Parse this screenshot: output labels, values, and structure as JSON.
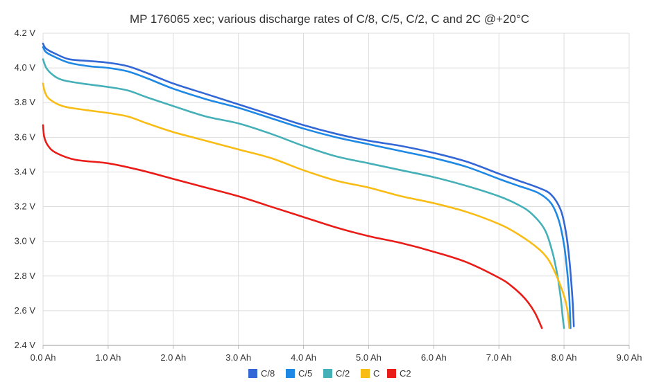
{
  "chart_data": {
    "type": "line",
    "title": "MP 176065 xec; various discharge rates of C/8, C/5, C/2, C and 2C @+20°C",
    "xlabel": "",
    "ylabel": "",
    "xlim": [
      0,
      9
    ],
    "ylim": [
      2.4,
      4.2
    ],
    "x_ticks": [
      0,
      1,
      2,
      3,
      4,
      5,
      6,
      7,
      8,
      9
    ],
    "x_tick_labels": [
      "0.0 Ah",
      "1.0 Ah",
      "2.0 Ah",
      "3.0 Ah",
      "4.0 Ah",
      "5.0 Ah",
      "6.0 Ah",
      "7.0 Ah",
      "8.0 Ah",
      "9.0 Ah"
    ],
    "y_ticks": [
      2.4,
      2.6,
      2.8,
      3.0,
      3.2,
      3.4,
      3.6,
      3.8,
      4.0,
      4.2
    ],
    "y_tick_labels": [
      "2.4 V",
      "2.6 V",
      "2.8 V",
      "3.0 V",
      "3.2 V",
      "3.4 V",
      "3.6 V",
      "3.8 V",
      "4.0 V",
      "4.2 V"
    ],
    "grid": true,
    "legend_position": "bottom",
    "series": [
      {
        "name": "C/8",
        "color": "#3367d6",
        "points": [
          [
            0,
            4.14
          ],
          [
            0.05,
            4.11
          ],
          [
            0.2,
            4.08
          ],
          [
            0.4,
            4.05
          ],
          [
            0.7,
            4.04
          ],
          [
            1.0,
            4.03
          ],
          [
            1.3,
            4.01
          ],
          [
            1.6,
            3.97
          ],
          [
            2.0,
            3.91
          ],
          [
            2.5,
            3.85
          ],
          [
            3.0,
            3.79
          ],
          [
            3.5,
            3.73
          ],
          [
            4.0,
            3.67
          ],
          [
            4.5,
            3.62
          ],
          [
            5.0,
            3.58
          ],
          [
            5.5,
            3.55
          ],
          [
            6.0,
            3.51
          ],
          [
            6.5,
            3.46
          ],
          [
            7.0,
            3.39
          ],
          [
            7.3,
            3.35
          ],
          [
            7.6,
            3.31
          ],
          [
            7.8,
            3.27
          ],
          [
            7.95,
            3.18
          ],
          [
            8.03,
            3.05
          ],
          [
            8.08,
            2.9
          ],
          [
            8.12,
            2.72
          ],
          [
            8.14,
            2.6
          ],
          [
            8.15,
            2.51
          ]
        ]
      },
      {
        "name": "C/5",
        "color": "#1e88e5",
        "points": [
          [
            0,
            4.12
          ],
          [
            0.05,
            4.09
          ],
          [
            0.2,
            4.06
          ],
          [
            0.4,
            4.03
          ],
          [
            0.7,
            4.01
          ],
          [
            1.0,
            4.0
          ],
          [
            1.3,
            3.98
          ],
          [
            1.6,
            3.94
          ],
          [
            2.0,
            3.88
          ],
          [
            2.5,
            3.82
          ],
          [
            3.0,
            3.77
          ],
          [
            3.5,
            3.71
          ],
          [
            4.0,
            3.65
          ],
          [
            4.5,
            3.6
          ],
          [
            5.0,
            3.56
          ],
          [
            5.5,
            3.52
          ],
          [
            6.0,
            3.48
          ],
          [
            6.5,
            3.43
          ],
          [
            7.0,
            3.36
          ],
          [
            7.3,
            3.32
          ],
          [
            7.6,
            3.28
          ],
          [
            7.8,
            3.22
          ],
          [
            7.92,
            3.12
          ],
          [
            8.0,
            2.98
          ],
          [
            8.05,
            2.82
          ],
          [
            8.08,
            2.68
          ],
          [
            8.1,
            2.5
          ]
        ]
      },
      {
        "name": "C/2",
        "color": "#45b0b8",
        "points": [
          [
            0,
            4.05
          ],
          [
            0.05,
            4.0
          ],
          [
            0.15,
            3.96
          ],
          [
            0.3,
            3.93
          ],
          [
            0.6,
            3.91
          ],
          [
            1.0,
            3.89
          ],
          [
            1.3,
            3.87
          ],
          [
            1.6,
            3.83
          ],
          [
            2.0,
            3.78
          ],
          [
            2.5,
            3.72
          ],
          [
            3.0,
            3.68
          ],
          [
            3.5,
            3.62
          ],
          [
            4.0,
            3.55
          ],
          [
            4.5,
            3.49
          ],
          [
            5.0,
            3.45
          ],
          [
            5.5,
            3.41
          ],
          [
            6.0,
            3.37
          ],
          [
            6.5,
            3.32
          ],
          [
            7.0,
            3.26
          ],
          [
            7.3,
            3.21
          ],
          [
            7.5,
            3.16
          ],
          [
            7.7,
            3.07
          ],
          [
            7.82,
            2.94
          ],
          [
            7.9,
            2.8
          ],
          [
            7.95,
            2.67
          ],
          [
            7.98,
            2.56
          ],
          [
            8.0,
            2.5
          ]
        ]
      },
      {
        "name": "C",
        "color": "#f9bc15",
        "points": [
          [
            0,
            3.91
          ],
          [
            0.03,
            3.86
          ],
          [
            0.1,
            3.82
          ],
          [
            0.3,
            3.78
          ],
          [
            0.6,
            3.76
          ],
          [
            1.0,
            3.74
          ],
          [
            1.3,
            3.72
          ],
          [
            1.6,
            3.68
          ],
          [
            2.0,
            3.63
          ],
          [
            2.5,
            3.58
          ],
          [
            3.0,
            3.53
          ],
          [
            3.5,
            3.48
          ],
          [
            4.0,
            3.41
          ],
          [
            4.5,
            3.35
          ],
          [
            5.0,
            3.31
          ],
          [
            5.5,
            3.26
          ],
          [
            6.0,
            3.22
          ],
          [
            6.5,
            3.17
          ],
          [
            7.0,
            3.1
          ],
          [
            7.3,
            3.04
          ],
          [
            7.6,
            2.96
          ],
          [
            7.75,
            2.9
          ],
          [
            7.85,
            2.83
          ],
          [
            7.95,
            2.74
          ],
          [
            8.02,
            2.66
          ],
          [
            8.06,
            2.58
          ],
          [
            8.08,
            2.5
          ]
        ]
      },
      {
        "name": "C2",
        "color": "#ea1c17",
        "points": [
          [
            0,
            3.67
          ],
          [
            0.02,
            3.6
          ],
          [
            0.08,
            3.55
          ],
          [
            0.2,
            3.51
          ],
          [
            0.5,
            3.47
          ],
          [
            1.0,
            3.45
          ],
          [
            1.5,
            3.41
          ],
          [
            2.0,
            3.36
          ],
          [
            2.5,
            3.31
          ],
          [
            3.0,
            3.26
          ],
          [
            3.5,
            3.2
          ],
          [
            4.0,
            3.14
          ],
          [
            4.5,
            3.08
          ],
          [
            5.0,
            3.03
          ],
          [
            5.5,
            2.99
          ],
          [
            6.0,
            2.94
          ],
          [
            6.5,
            2.88
          ],
          [
            7.0,
            2.79
          ],
          [
            7.2,
            2.74
          ],
          [
            7.4,
            2.67
          ],
          [
            7.55,
            2.59
          ],
          [
            7.66,
            2.5
          ]
        ]
      }
    ]
  }
}
